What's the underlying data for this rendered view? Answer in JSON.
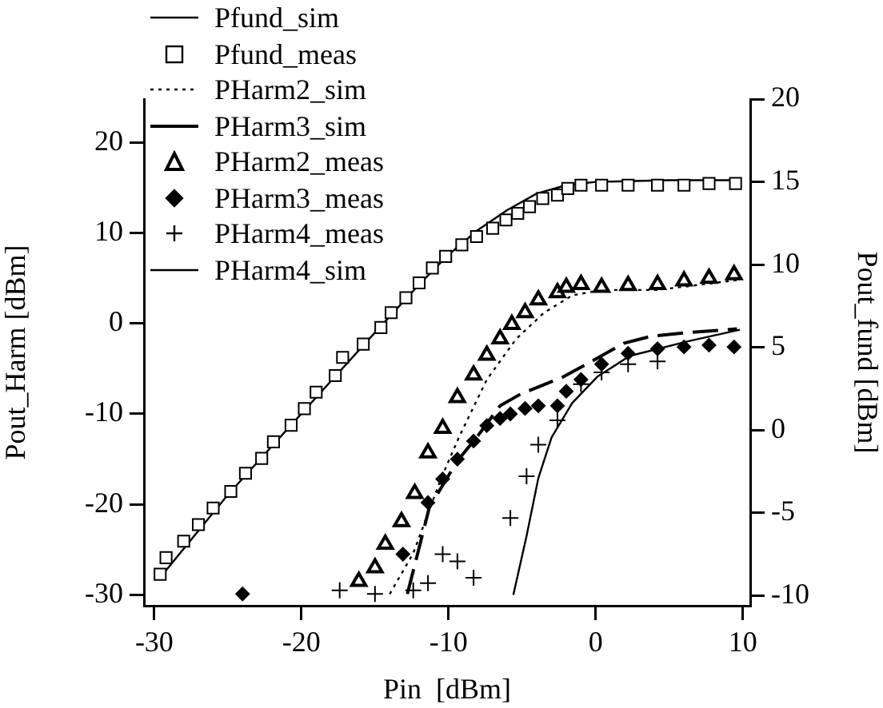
{
  "chart_data": {
    "type": "line",
    "xlabel": "Pin  [dBm]",
    "ylabel": "Pout_Harm [dBm]",
    "y2label": "Pout_fund [dBm]",
    "xlim": [
      -30.7,
      10.5
    ],
    "xticks": [
      -30,
      -20,
      -10,
      0,
      10
    ],
    "ylim": [
      -31.2,
      24.8
    ],
    "yticks": [
      -30,
      -20,
      -10,
      0,
      10,
      20
    ],
    "y2lim": [
      -10.6,
      20
    ],
    "y2ticks": [
      -10,
      -5,
      0,
      5,
      10,
      15,
      20
    ],
    "grid": false,
    "legend": "top left",
    "series": [
      {
        "name": "Pfund_sim",
        "axis": "y2",
        "color": "#000000",
        "line_style": "solid",
        "marker": "none",
        "x": [
          -29.6,
          -25,
          -20,
          -15,
          -12,
          -10,
          -8,
          -6,
          -4,
          -2,
          0,
          5,
          9.8
        ],
        "values": [
          -8.9,
          -3.9,
          1.0,
          5.9,
          8.8,
          10.6,
          12.1,
          13.3,
          14.3,
          14.8,
          15.0,
          15.1,
          15.1
        ]
      },
      {
        "name": "Pfund_meas",
        "type": "scatter",
        "axis": "y2",
        "color": "#000000",
        "marker": "square",
        "x": [
          -29.6,
          -29.2,
          -28.0,
          -27.0,
          -26.0,
          -24.8,
          -23.8,
          -22.7,
          -21.9,
          -20.7,
          -19.8,
          -19.0,
          -17.7,
          -17.2,
          -15.8,
          -14.6,
          -13.9,
          -12.9,
          -12.0,
          -11.1,
          -10.2,
          -9.1,
          -8.1,
          -7.0,
          -6.1,
          -5.3,
          -4.5,
          -3.6,
          -2.6,
          -1.9,
          -1.0,
          0.4,
          2.2,
          4.2,
          6.0,
          7.7,
          9.5
        ],
        "values": [
          -8.7,
          -7.7,
          -6.7,
          -5.7,
          -4.7,
          -3.7,
          -2.6,
          -1.7,
          -0.7,
          0.3,
          1.3,
          2.3,
          3.3,
          4.4,
          5.2,
          6.2,
          7.1,
          8.0,
          8.9,
          9.8,
          10.5,
          11.2,
          11.7,
          12.2,
          12.7,
          13.1,
          13.5,
          14.0,
          14.2,
          14.6,
          14.8,
          14.8,
          14.8,
          14.8,
          14.8,
          14.9,
          14.9
        ]
      },
      {
        "name": "PHarm2_sim",
        "color": "#000000",
        "line_style": "dotted",
        "marker": "none",
        "x": [
          -14.0,
          -12.4,
          -10.5,
          -9.3,
          -7.4,
          -5.4,
          -3.5,
          -1.6,
          0.4,
          4.2,
          9.6
        ],
        "values": [
          -29.9,
          -25.4,
          -17.1,
          -12.6,
          -6.2,
          -1.7,
          1.2,
          3.1,
          3.7,
          3.7,
          4.8
        ]
      },
      {
        "name": "PHarm3_sim",
        "color": "#000000",
        "line_style": "dashed",
        "marker": "none",
        "x": [
          -12.8,
          -11.3,
          -9.4,
          -8.0,
          -6.5,
          -5.1,
          -2.2,
          -0.4,
          1.9,
          3.8,
          6.3,
          8.1,
          9.6
        ],
        "values": [
          -29.9,
          -20.3,
          -15.2,
          -12.4,
          -9.1,
          -7.8,
          -5.9,
          -4.3,
          -2.2,
          -1.4,
          -1.0,
          -0.8,
          -0.6
        ]
      },
      {
        "name": "PHarm2_meas",
        "type": "scatter",
        "color": "#000000",
        "marker": "triangle",
        "x": [
          -16.1,
          -15.0,
          -14.3,
          -13.2,
          -12.3,
          -11.4,
          -10.4,
          -9.4,
          -8.3,
          -7.4,
          -6.5,
          -5.7,
          -4.8,
          -3.9,
          -2.6,
          -2.0,
          -1.0,
          0.4,
          2.2,
          4.2,
          6.0,
          7.7,
          9.4
        ],
        "values": [
          -28.5,
          -27.0,
          -24.4,
          -21.9,
          -18.8,
          -14.3,
          -11.6,
          -8.2,
          -5.7,
          -3.5,
          -1.7,
          -0.1,
          1.2,
          2.6,
          3.4,
          4.0,
          4.3,
          4.0,
          4.2,
          4.3,
          4.7,
          5.0,
          5.4
        ]
      },
      {
        "name": "PHarm3_meas",
        "type": "scatter",
        "color": "#000000",
        "marker": "diamond",
        "x": [
          -24.0,
          -13.1,
          -11.4,
          -10.4,
          -9.4,
          -8.3,
          -7.4,
          -6.5,
          -5.8,
          -4.8,
          -3.9,
          -2.6,
          -2.0,
          -1.0,
          0.4,
          2.2,
          4.2,
          6.0,
          7.7,
          9.4
        ],
        "values": [
          -29.9,
          -25.5,
          -19.8,
          -17.2,
          -15.0,
          -13.0,
          -11.3,
          -10.5,
          -10.0,
          -9.4,
          -9.1,
          -9.1,
          -7.5,
          -6.2,
          -4.5,
          -3.3,
          -2.8,
          -2.6,
          -2.4,
          -2.6
        ]
      },
      {
        "name": "PHarm4_meas",
        "type": "scatter",
        "color": "#000000",
        "marker": "cross",
        "x": [
          -17.4,
          -15.0,
          -12.4,
          -11.4,
          -10.4,
          -9.4,
          -8.3,
          -5.8,
          -4.7,
          -3.9,
          -2.6,
          -1.0,
          0.4,
          2.2,
          4.2
        ],
        "values": [
          -29.5,
          -29.9,
          -29.5,
          -28.7,
          -25.5,
          -26.3,
          -28.1,
          -21.5,
          -16.9,
          -13.4,
          -10.7,
          -6.7,
          -5.4,
          -4.5,
          -4.2
        ]
      },
      {
        "name": "PHarm4_sim",
        "color": "#000000",
        "line_style": "solid",
        "marker": "none",
        "x": [
          -5.6,
          -4.7,
          -3.9,
          -3.0,
          -1.6,
          0.1,
          2.3,
          6.2,
          9.8
        ],
        "values": [
          -30.0,
          -23.5,
          -17.1,
          -12.6,
          -8.8,
          -5.9,
          -3.6,
          -2.0,
          -0.7
        ]
      }
    ]
  }
}
